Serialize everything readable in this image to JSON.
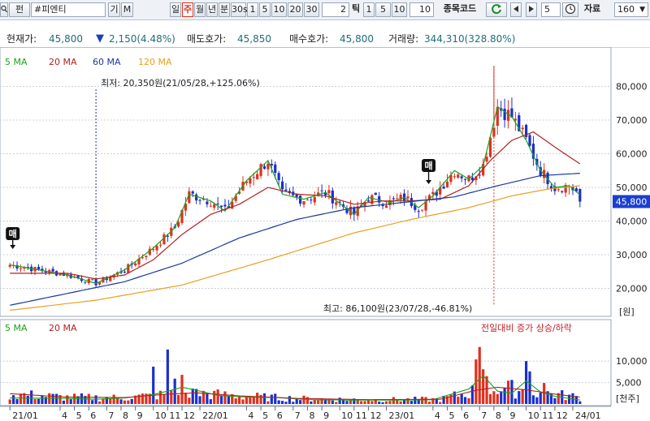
{
  "toolbar": {
    "search_icon": "search-icon",
    "mode_btn": "펀",
    "code": "#피엔티",
    "btn_gi": "기",
    "btn_m": "M",
    "periods": [
      "일",
      "주",
      "월",
      "년",
      "분",
      "30s"
    ],
    "selected_period": "주",
    "minute_buttons": [
      "1",
      "5",
      "10",
      "20",
      "30"
    ],
    "n_value": "2",
    "tick_label": "틱",
    "tick_buttons": [
      "1",
      "5",
      "10"
    ],
    "tick_value": "10",
    "code_label": "종목코드",
    "refresh_icon": "refresh-icon",
    "prev_icon": "triangle-left-icon",
    "next_icon": "triangle-right-icon",
    "step_value": "5",
    "clock_icon": "clock-icon",
    "data_label": "자료",
    "data_count": "160"
  },
  "info": {
    "current_label": "현재가:",
    "current_value": "45,800",
    "down_icon": "down-triangle-icon",
    "change": "2,150(4.48%)",
    "ask_label": "매도호가:",
    "ask_value": "45,850",
    "bid_label": "매수호가:",
    "bid_value": "45,800",
    "volume_label": "거래량:",
    "volume_value": "344,310(328.80%)"
  },
  "colors": {
    "up": "#e0301e",
    "down": "#1a2fcf",
    "ma5": "#1aa31a",
    "ma20": "#b22222",
    "ma60": "#1a3a9a",
    "ma120": "#e8a020",
    "last_price_bg": "#1a3fd0"
  },
  "chart_data": {
    "type": "candlestick",
    "price_legend": [
      "5 MA",
      "20 MA",
      "60 MA",
      "120 MA"
    ],
    "volume_legend": [
      "5 MA",
      "20 MA"
    ],
    "volume_caption": "전일대비 증가 상승/하락",
    "price_unit": "[원]",
    "volume_unit": "[천주]",
    "price_axis": {
      "ticks": [
        20000,
        30000,
        40000,
        50000,
        60000,
        70000,
        80000
      ],
      "tick_labels": [
        "20,000",
        "30,000",
        "40,000",
        "50,000",
        "60,000",
        "70,000",
        "80,000"
      ],
      "range": [
        11700,
        91700
      ]
    },
    "volume_axis": {
      "ticks": [
        5000,
        10000
      ],
      "tick_labels": [
        "5,000",
        "10,000"
      ],
      "range": [
        0,
        15900
      ]
    },
    "last_price": 45800,
    "last_price_label": "45,800",
    "annotations": [
      {
        "text": "최저: 20,350원(21/05/28,+125.06%)",
        "x": "21/05/28",
        "price": 20350
      },
      {
        "text": "최고: 86,100원(23/07/28,-46.81%)",
        "x": "23/07/28",
        "price": 86100
      }
    ],
    "signal_markers": [
      {
        "text": "매",
        "x": "21/01",
        "price": 28000
      },
      {
        "text": "매",
        "x": "23/01",
        "price": 50000
      }
    ],
    "x_labels": [
      "21/01",
      "4",
      "5",
      "6",
      "7",
      "8",
      "9",
      "10",
      "11",
      "12",
      "22/01",
      "4",
      "5",
      "6",
      "7",
      "8",
      "9",
      "10",
      "11",
      "12",
      "23/01",
      "4",
      "5",
      "6",
      "7",
      "8",
      "9",
      "10",
      "11",
      "12",
      "24/01"
    ],
    "ma_anchors": {
      "ma5": [
        [
          0,
          27000
        ],
        [
          8,
          25500
        ],
        [
          16,
          24000
        ],
        [
          24,
          21500
        ],
        [
          32,
          25500
        ],
        [
          40,
          32000
        ],
        [
          46,
          38000
        ],
        [
          50,
          48000
        ],
        [
          56,
          46000
        ],
        [
          60,
          43000
        ],
        [
          66,
          52000
        ],
        [
          72,
          58000
        ],
        [
          76,
          48000
        ],
        [
          82,
          46500
        ],
        [
          88,
          48500
        ],
        [
          96,
          42000
        ],
        [
          100,
          47000
        ],
        [
          106,
          45500
        ],
        [
          110,
          47000
        ],
        [
          114,
          44000
        ],
        [
          118,
          47500
        ],
        [
          124,
          55000
        ],
        [
          128,
          52500
        ],
        [
          132,
          56500
        ],
        [
          136,
          74000
        ],
        [
          140,
          71000
        ],
        [
          144,
          64000
        ],
        [
          148,
          55000
        ],
        [
          152,
          50000
        ],
        [
          156,
          50500
        ],
        [
          159,
          47800
        ]
      ],
      "ma20": [
        [
          0,
          24500
        ],
        [
          16,
          24500
        ],
        [
          24,
          22800
        ],
        [
          32,
          24000
        ],
        [
          40,
          28500
        ],
        [
          48,
          36000
        ],
        [
          56,
          42000
        ],
        [
          64,
          45000
        ],
        [
          72,
          50000
        ],
        [
          80,
          48000
        ],
        [
          88,
          47500
        ],
        [
          96,
          45000
        ],
        [
          104,
          46000
        ],
        [
          112,
          46000
        ],
        [
          120,
          46500
        ],
        [
          128,
          50500
        ],
        [
          134,
          58000
        ],
        [
          140,
          64000
        ],
        [
          146,
          66500
        ],
        [
          152,
          62000
        ],
        [
          159,
          57000
        ]
      ],
      "ma60": [
        [
          0,
          15000
        ],
        [
          16,
          18500
        ],
        [
          32,
          22000
        ],
        [
          48,
          27500
        ],
        [
          64,
          35000
        ],
        [
          80,
          40500
        ],
        [
          96,
          44000
        ],
        [
          112,
          45800
        ],
        [
          124,
          47200
        ],
        [
          136,
          50500
        ],
        [
          148,
          53500
        ],
        [
          159,
          54200
        ]
      ],
      "ma120": [
        [
          0,
          13500
        ],
        [
          24,
          16500
        ],
        [
          48,
          21000
        ],
        [
          72,
          28500
        ],
        [
          96,
          36500
        ],
        [
          112,
          40500
        ],
        [
          128,
          44000
        ],
        [
          140,
          47500
        ],
        [
          150,
          49500
        ],
        [
          159,
          50500
        ]
      ]
    },
    "vol_ma_anchors": {
      "ma5": [
        [
          0,
          1400
        ],
        [
          16,
          1300
        ],
        [
          24,
          1100
        ],
        [
          32,
          1400
        ],
        [
          40,
          2200
        ],
        [
          44,
          3000
        ],
        [
          48,
          3900
        ],
        [
          52,
          3200
        ],
        [
          58,
          2000
        ],
        [
          66,
          1600
        ],
        [
          74,
          1500
        ],
        [
          84,
          1000
        ],
        [
          96,
          900
        ],
        [
          108,
          900
        ],
        [
          118,
          1000
        ],
        [
          128,
          3500
        ],
        [
          132,
          6600
        ],
        [
          136,
          3000
        ],
        [
          140,
          2500
        ],
        [
          144,
          5400
        ],
        [
          148,
          2800
        ],
        [
          152,
          1800
        ],
        [
          159,
          900
        ]
      ],
      "ma20": [
        [
          0,
          2400
        ],
        [
          16,
          1600
        ],
        [
          32,
          1500
        ],
        [
          44,
          2300
        ],
        [
          52,
          2600
        ],
        [
          64,
          1900
        ],
        [
          80,
          1300
        ],
        [
          100,
          1000
        ],
        [
          120,
          1100
        ],
        [
          130,
          3200
        ],
        [
          136,
          3900
        ],
        [
          144,
          3300
        ],
        [
          152,
          2300
        ],
        [
          159,
          1600
        ]
      ]
    }
  }
}
